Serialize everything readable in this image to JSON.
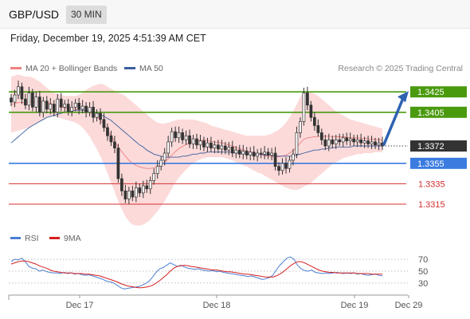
{
  "header": {
    "symbol": "GBP/USD",
    "timeframe": "30 MIN"
  },
  "datetime": "Friday, December 19, 2025 4:51:39 AM CET",
  "legend": {
    "ma20_label": "MA 20 + Bollinger Bands",
    "ma50_label": "MA 50",
    "rsi_label": "RSI",
    "rsi_ma_label": "9MA",
    "credit": "Research © 2025 Trading Central"
  },
  "colors": {
    "bollinger_fill": "#fcdada",
    "ma20": "#f08080",
    "ma50": "#3b5f9e",
    "resistance": "#4a9a0e",
    "pivot": "#3a7be0",
    "support": "#d42f2f",
    "current": "#333333",
    "rsi": "#4a7fd4",
    "rsi_ma": "#d62020",
    "arrow": "#2e62b0"
  },
  "chart_data": [
    {
      "type": "candlestick",
      "x_ticks": [
        "Dec 17",
        "Dec 18",
        "Dec 19",
        "Dec 29"
      ],
      "ylim": [
        1.329,
        1.344
      ],
      "current_price": {
        "value": 1.3372,
        "label": "1.3372"
      },
      "levels": [
        {
          "value": 1.3425,
          "label": "1.3425",
          "kind": "resistance"
        },
        {
          "value": 1.3405,
          "label": "1.3405",
          "kind": "resistance"
        },
        {
          "value": 1.3355,
          "label": "1.3355",
          "kind": "pivot"
        },
        {
          "value": 1.3335,
          "label": "1.3335",
          "kind": "support"
        },
        {
          "value": 1.3315,
          "label": "1.3315",
          "kind": "support"
        }
      ],
      "closes": [
        1.3415,
        1.3422,
        1.343,
        1.3418,
        1.3412,
        1.3424,
        1.341,
        1.342,
        1.3405,
        1.3416,
        1.3408,
        1.3413,
        1.3405,
        1.3418,
        1.341,
        1.3413,
        1.3406,
        1.341,
        1.3414,
        1.3408,
        1.3411,
        1.3405,
        1.341,
        1.34,
        1.3404,
        1.3398,
        1.339,
        1.3382,
        1.3376,
        1.337,
        1.334,
        1.3328,
        1.332,
        1.3328,
        1.3322,
        1.3331,
        1.3326,
        1.3333,
        1.333,
        1.3338,
        1.3345,
        1.3352,
        1.3358,
        1.3365,
        1.3376,
        1.3386,
        1.338,
        1.3385,
        1.3378,
        1.3382,
        1.3374,
        1.3379,
        1.3373,
        1.3377,
        1.3371,
        1.3375,
        1.337,
        1.3373,
        1.3369,
        1.3372,
        1.3368,
        1.3371,
        1.3365,
        1.3368,
        1.3364,
        1.3367,
        1.3363,
        1.3366,
        1.3362,
        1.3365,
        1.3364,
        1.3366,
        1.3363,
        1.3365,
        1.3352,
        1.3348,
        1.3355,
        1.335,
        1.3358,
        1.3364,
        1.3385,
        1.3396,
        1.3424,
        1.3412,
        1.34,
        1.3392,
        1.3385,
        1.3378,
        1.3372,
        1.3378,
        1.3374,
        1.3378,
        1.3376,
        1.338,
        1.3377,
        1.3379,
        1.3376,
        1.3378,
        1.3375,
        1.3377,
        1.3374,
        1.3376,
        1.3373,
        1.3375,
        1.3372
      ],
      "bollinger_upper": [
        1.344,
        1.3441,
        1.3442,
        1.3441,
        1.344,
        1.344,
        1.3439,
        1.3437,
        1.3435,
        1.3432,
        1.3429,
        1.3426,
        1.3424,
        1.3423,
        1.3422,
        1.3421,
        1.3421,
        1.3421,
        1.3421,
        1.3422,
        1.3424,
        1.3427,
        1.3429,
        1.3431,
        1.3432,
        1.3433,
        1.3432,
        1.343,
        1.3428,
        1.3426,
        1.3424,
        1.3423,
        1.3421,
        1.3418,
        1.3415,
        1.3412,
        1.3409,
        1.3406,
        1.3403,
        1.34,
        1.3397,
        1.3395,
        1.3394,
        1.3394,
        1.3395,
        1.3396,
        1.3397,
        1.3398,
        1.3398,
        1.3398,
        1.3398,
        1.3398,
        1.3397,
        1.3396,
        1.3395,
        1.3394,
        1.3392,
        1.3391,
        1.339,
        1.3389,
        1.3388,
        1.3387,
        1.3386,
        1.3385,
        1.3384,
        1.3383,
        1.3382,
        1.3382,
        1.3382,
        1.3382,
        1.3382,
        1.3382,
        1.3383,
        1.3384,
        1.3386,
        1.3388,
        1.3391,
        1.3395,
        1.34,
        1.3406,
        1.3413,
        1.342,
        1.3425,
        1.3426,
        1.3425,
        1.3423,
        1.3421,
        1.3418,
        1.3415,
        1.3412,
        1.3409,
        1.3406,
        1.3404,
        1.3402,
        1.34,
        1.3398,
        1.3397,
        1.3396,
        1.3395,
        1.3394,
        1.3393,
        1.3392,
        1.3391,
        1.339,
        1.3389
      ],
      "bollinger_lower": [
        1.3385,
        1.3386,
        1.3387,
        1.3388,
        1.3389,
        1.339,
        1.3392,
        1.3394,
        1.3396,
        1.3398,
        1.34,
        1.3401,
        1.3401,
        1.34,
        1.3399,
        1.3398,
        1.3397,
        1.3396,
        1.3395,
        1.3393,
        1.339,
        1.3386,
        1.3381,
        1.3375,
        1.3369,
        1.3362,
        1.3354,
        1.3345,
        1.3336,
        1.3327,
        1.3318,
        1.331,
        1.3303,
        1.3298,
        1.3295,
        1.3294,
        1.3294,
        1.3295,
        1.3297,
        1.33,
        1.3304,
        1.3308,
        1.3313,
        1.3318,
        1.3324,
        1.333,
        1.3336,
        1.3341,
        1.3345,
        1.3349,
        1.3352,
        1.3355,
        1.3357,
        1.3359,
        1.336,
        1.3361,
        1.3361,
        1.3361,
        1.3361,
        1.3361,
        1.336,
        1.3359,
        1.3358,
        1.3356,
        1.3355,
        1.3353,
        1.3352,
        1.335,
        1.3348,
        1.3346,
        1.3345,
        1.3343,
        1.3341,
        1.3339,
        1.3337,
        1.3335,
        1.3333,
        1.3331,
        1.333,
        1.3329,
        1.3329,
        1.333,
        1.3332,
        1.3334,
        1.3336,
        1.3339,
        1.3342,
        1.3345,
        1.3348,
        1.3351,
        1.3354,
        1.3356,
        1.3358,
        1.336,
        1.3361,
        1.3362,
        1.3363,
        1.3364,
        1.3364,
        1.3365,
        1.3365,
        1.3365,
        1.3366,
        1.3366,
        1.3366
      ],
      "ma50": [
        1.3375,
        1.3378,
        1.3381,
        1.3384,
        1.3387,
        1.339,
        1.3392,
        1.3394,
        1.3396,
        1.3398,
        1.34,
        1.3401,
        1.3402,
        1.3403,
        1.3404,
        1.3405,
        1.3406,
        1.3406,
        1.3407,
        1.3407,
        1.3407,
        1.3407,
        1.3406,
        1.3405,
        1.3404,
        1.3403,
        1.3401,
        1.3399,
        1.3397,
        1.3394,
        1.3391,
        1.3388,
        1.3385,
        1.3382,
        1.3379,
        1.3376,
        1.3373,
        1.3371,
        1.3368,
        1.3366,
        1.3364,
        1.3363,
        1.3362,
        1.3361,
        1.3361,
        1.3361,
        1.3361,
        1.3361,
        1.3362,
        1.3362,
        1.3363,
        1.3364,
        1.3364,
        1.3365,
        1.3365,
        1.3366,
        1.3366,
        1.3366,
        1.3366,
        1.3366,
        1.3366,
        1.3366,
        1.3366,
        1.3365,
        1.3365,
        1.3365,
        1.3365,
        1.3364,
        1.3364,
        1.3364,
        1.3364,
        1.3363,
        1.3363,
        1.3363,
        1.3362,
        1.3362,
        1.3362,
        1.3362,
        1.3362,
        1.3362,
        1.3363,
        1.3364,
        1.3365,
        1.3366,
        1.3367,
        1.3368,
        1.3368,
        1.3369,
        1.3369,
        1.337,
        1.337,
        1.3371,
        1.3371,
        1.3371,
        1.3371,
        1.3371,
        1.3372,
        1.3372,
        1.3372,
        1.3372,
        1.3372,
        1.3372,
        1.3372,
        1.3372,
        1.3372
      ]
    },
    {
      "type": "line",
      "ylim": [
        15,
        85
      ],
      "y_ticks": [
        "70",
        "50",
        "30"
      ],
      "series": [
        {
          "name": "RSI",
          "values": [
            66,
            70,
            69,
            72,
            66,
            58,
            55,
            54,
            50,
            52,
            49,
            48,
            47,
            47,
            46,
            48,
            46,
            47,
            45,
            46,
            44,
            43,
            44,
            42,
            40,
            38,
            36,
            33,
            32,
            30,
            26,
            22,
            20,
            21,
            22,
            23,
            24,
            26,
            29,
            33,
            40,
            48,
            54,
            56,
            60,
            64,
            61,
            58,
            60,
            57,
            55,
            54,
            53,
            54,
            52,
            51,
            50,
            51,
            49,
            50,
            48,
            47,
            46,
            45,
            44,
            43,
            42,
            41,
            42,
            40,
            38,
            36,
            37,
            39,
            43,
            52,
            60,
            66,
            72,
            74,
            70,
            60,
            54,
            51,
            50,
            52,
            48,
            47,
            46,
            47,
            46,
            47,
            48,
            47,
            46,
            47,
            46,
            47,
            45,
            46,
            44,
            43,
            44,
            45,
            43,
            42
          ]
        },
        {
          "name": "9MA",
          "values": [
            62,
            64,
            66,
            67,
            67,
            66,
            64,
            62,
            59,
            57,
            55,
            52,
            50,
            49,
            48,
            47,
            47,
            47,
            46,
            46,
            46,
            45,
            45,
            44,
            43,
            42,
            40,
            38,
            36,
            34,
            32,
            29,
            27,
            25,
            24,
            23,
            22,
            22,
            23,
            24,
            26,
            30,
            34,
            39,
            44,
            50,
            55,
            58,
            59,
            60,
            59,
            58,
            57,
            56,
            55,
            54,
            53,
            52,
            52,
            51,
            50,
            49,
            49,
            48,
            47,
            46,
            45,
            45,
            44,
            43,
            42,
            41,
            40,
            40,
            40,
            42,
            45,
            49,
            54,
            59,
            63,
            66,
            66,
            64,
            61,
            58,
            55,
            52,
            50,
            49,
            48,
            48,
            47,
            47,
            47,
            47,
            47,
            47,
            46,
            46,
            46,
            46,
            45,
            45,
            45,
            45
          ]
        }
      ]
    }
  ]
}
